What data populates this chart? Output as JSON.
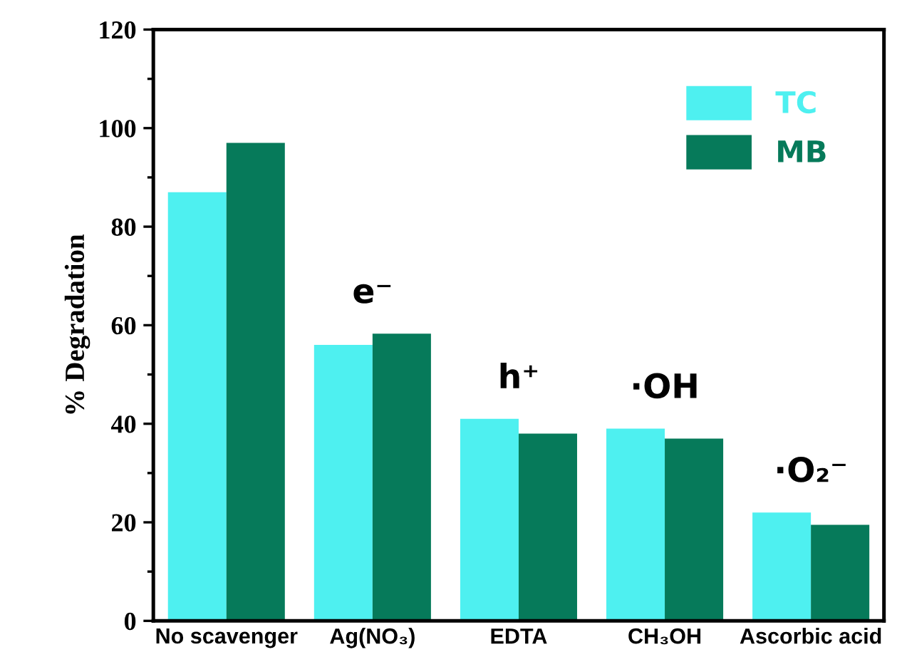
{
  "chart_data": {
    "type": "bar",
    "ylabel": "% Degradation",
    "categories": [
      "No scavenger",
      "Ag(NO₃)",
      "EDTA",
      "CH₃OH",
      "Ascorbic acid"
    ],
    "series": [
      {
        "name": "TC",
        "color": "#4ef0f0",
        "values": [
          87,
          56,
          41,
          39,
          22
        ]
      },
      {
        "name": "MB",
        "color": "#067a5a",
        "values": [
          97,
          58.3,
          38,
          37,
          19.5
        ]
      }
    ],
    "ylim": [
      0,
      120
    ],
    "yticks": [
      0,
      20,
      40,
      60,
      80,
      100,
      120
    ],
    "grid": false,
    "legend": "top right",
    "annotations": [
      "e⁻",
      "h⁺",
      "·OH",
      "·O₂⁻"
    ]
  }
}
